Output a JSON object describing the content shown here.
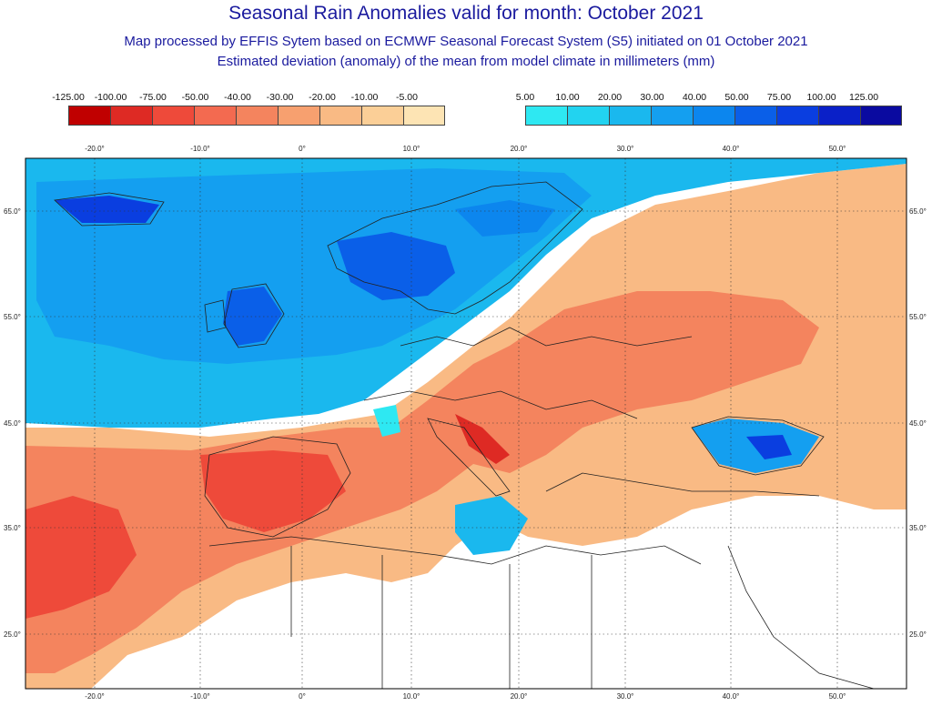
{
  "header": {
    "title": "Seasonal Rain Anomalies valid for month: October 2021",
    "subtitle1": "Map processed by EFFIS Sytem based on ECMWF Seasonal Forecast System (S5) initiated on 01 October 2021",
    "subtitle2": "Estimated deviation (anomaly) of the mean from model climate in millimeters (mm)"
  },
  "legend": {
    "negative": {
      "labels": [
        "-125.00",
        "-100.00",
        "-75.00",
        "-50.00",
        "-40.00",
        "-30.00",
        "-20.00",
        "-10.00",
        "-5.00"
      ],
      "colors": [
        "#c00000",
        "#de2a24",
        "#ee4a3a",
        "#f36a50",
        "#f4845e",
        "#f7a06f",
        "#f9ba84",
        "#fbcf97",
        "#fde4b4"
      ]
    },
    "positive": {
      "labels": [
        "5.00",
        "10.00",
        "20.00",
        "30.00",
        "40.00",
        "50.00",
        "75.00",
        "100.00",
        "125.00"
      ],
      "colors": [
        "#2ee8f2",
        "#22d3f0",
        "#1ab8ee",
        "#149ff0",
        "#0c86ee",
        "#0a5fe8",
        "#0a3ee0",
        "#0a20c8",
        "#0a0aa0"
      ]
    }
  },
  "map": {
    "lon_ticks": [
      "-20.0°",
      "-10.0°",
      "0°",
      "10.0°",
      "20.0°",
      "30.0°",
      "40.0°",
      "50.0°"
    ],
    "lat_ticks": [
      "65.0°",
      "55.0°",
      "45.0°",
      "35.0°",
      "25.0°"
    ],
    "colors": {
      "land_white": "#ffffff",
      "border": "#222222",
      "grid": "#333333"
    }
  }
}
